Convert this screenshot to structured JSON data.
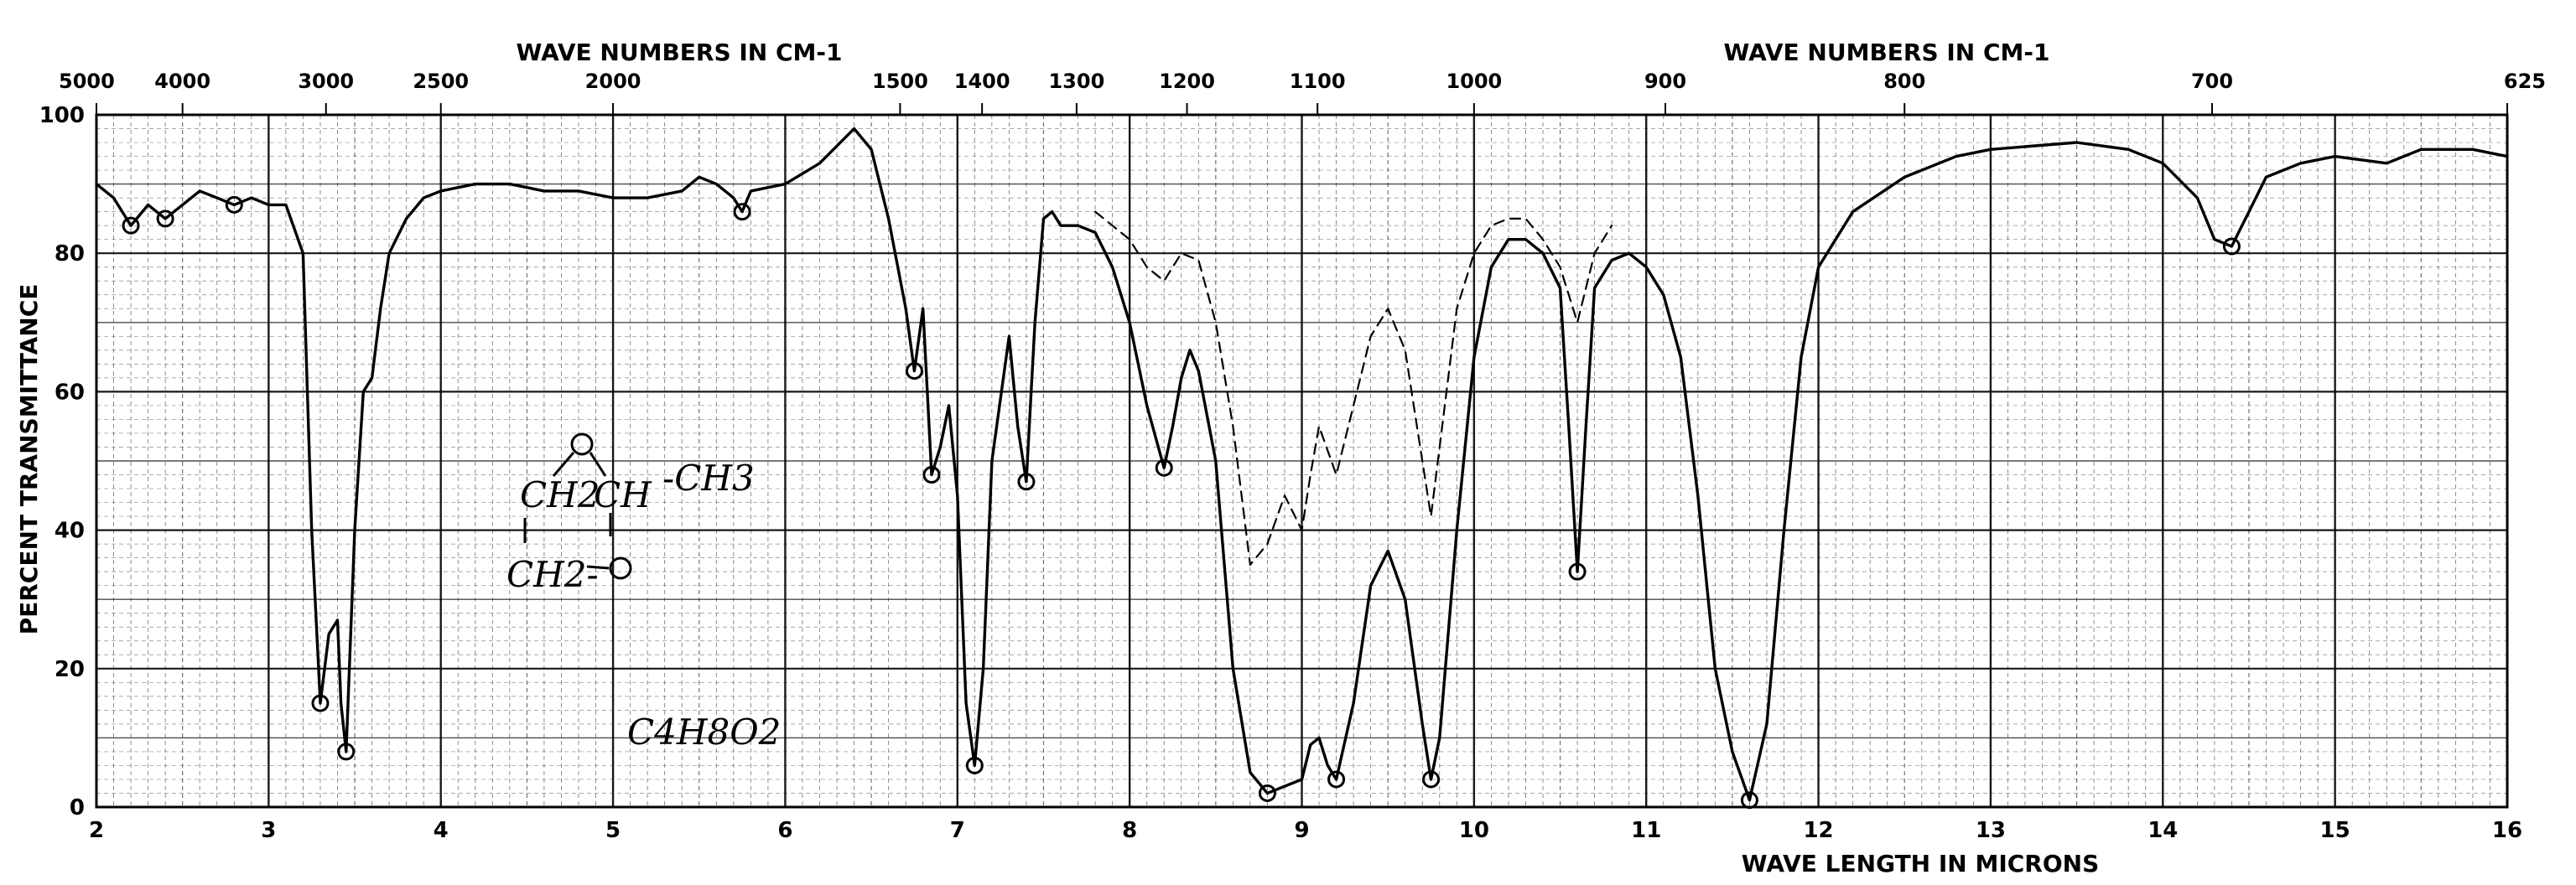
{
  "chart_data": {
    "type": "line",
    "top_axis_title_left": "WAVE NUMBERS IN CM-1",
    "top_axis_title_right": "WAVE NUMBERS IN CM-1",
    "xlabel": "WAVE LENGTH IN MICRONS",
    "ylabel": "PERCENT TRANSMITTANCE",
    "xlim": [
      2,
      16
    ],
    "ylim": [
      0,
      100
    ],
    "x_ticks": [
      2,
      3,
      4,
      5,
      6,
      7,
      8,
      9,
      10,
      11,
      12,
      13,
      14,
      15,
      16
    ],
    "y_ticks": [
      0,
      20,
      40,
      60,
      80,
      100
    ],
    "top_ticks": [
      {
        "label": "5000",
        "x": 2.0
      },
      {
        "label": "4000",
        "x": 2.5
      },
      {
        "label": "3000",
        "x": 3.333
      },
      {
        "label": "2500",
        "x": 4.0
      },
      {
        "label": "2000",
        "x": 5.0
      },
      {
        "label": "1500",
        "x": 6.667
      },
      {
        "label": "1400",
        "x": 7.143
      },
      {
        "label": "1300",
        "x": 7.692
      },
      {
        "label": "1200",
        "x": 8.333
      },
      {
        "label": "1100",
        "x": 9.091
      },
      {
        "label": "1000",
        "x": 10.0
      },
      {
        "label": "900",
        "x": 11.111
      },
      {
        "label": "800",
        "x": 12.5
      },
      {
        "label": "700",
        "x": 14.286
      },
      {
        "label": "625",
        "x": 16.0
      }
    ],
    "grid": true,
    "annotations": [
      "CH2",
      "CH",
      "-CH3",
      "CH2-",
      "C4H8O2"
    ],
    "series": [
      {
        "style": "solid",
        "points": [
          [
            2.0,
            90
          ],
          [
            2.1,
            88
          ],
          [
            2.2,
            84
          ],
          [
            2.3,
            87
          ],
          [
            2.4,
            85
          ],
          [
            2.5,
            87
          ],
          [
            2.6,
            89
          ],
          [
            2.7,
            88
          ],
          [
            2.8,
            87
          ],
          [
            2.9,
            88
          ],
          [
            3.0,
            87
          ],
          [
            3.1,
            87
          ],
          [
            3.2,
            80
          ],
          [
            3.25,
            40
          ],
          [
            3.3,
            15
          ],
          [
            3.35,
            25
          ],
          [
            3.4,
            27
          ],
          [
            3.42,
            15
          ],
          [
            3.45,
            8
          ],
          [
            3.5,
            40
          ],
          [
            3.55,
            60
          ],
          [
            3.6,
            62
          ],
          [
            3.65,
            72
          ],
          [
            3.7,
            80
          ],
          [
            3.8,
            85
          ],
          [
            3.9,
            88
          ],
          [
            4.0,
            89
          ],
          [
            4.2,
            90
          ],
          [
            4.4,
            90
          ],
          [
            4.6,
            89
          ],
          [
            4.8,
            89
          ],
          [
            5.0,
            88
          ],
          [
            5.2,
            88
          ],
          [
            5.4,
            89
          ],
          [
            5.5,
            91
          ],
          [
            5.6,
            90
          ],
          [
            5.7,
            88
          ],
          [
            5.75,
            86
          ],
          [
            5.8,
            89
          ],
          [
            6.0,
            90
          ],
          [
            6.2,
            93
          ],
          [
            6.4,
            98
          ],
          [
            6.5,
            95
          ],
          [
            6.6,
            85
          ],
          [
            6.7,
            72
          ],
          [
            6.75,
            63
          ],
          [
            6.8,
            72
          ],
          [
            6.85,
            48
          ],
          [
            6.9,
            52
          ],
          [
            6.95,
            58
          ],
          [
            7.0,
            45
          ],
          [
            7.05,
            15
          ],
          [
            7.1,
            6
          ],
          [
            7.15,
            20
          ],
          [
            7.2,
            50
          ],
          [
            7.3,
            68
          ],
          [
            7.35,
            55
          ],
          [
            7.4,
            47
          ],
          [
            7.45,
            70
          ],
          [
            7.5,
            85
          ],
          [
            7.55,
            86
          ],
          [
            7.6,
            84
          ],
          [
            7.7,
            84
          ],
          [
            7.8,
            83
          ],
          [
            7.9,
            78
          ],
          [
            8.0,
            70
          ],
          [
            8.1,
            58
          ],
          [
            8.2,
            49
          ],
          [
            8.25,
            55
          ],
          [
            8.3,
            62
          ],
          [
            8.35,
            66
          ],
          [
            8.4,
            63
          ],
          [
            8.5,
            50
          ],
          [
            8.6,
            20
          ],
          [
            8.7,
            5
          ],
          [
            8.8,
            2
          ],
          [
            8.9,
            3
          ],
          [
            9.0,
            4
          ],
          [
            9.05,
            9
          ],
          [
            9.1,
            10
          ],
          [
            9.15,
            6
          ],
          [
            9.2,
            4
          ],
          [
            9.3,
            15
          ],
          [
            9.4,
            32
          ],
          [
            9.5,
            37
          ],
          [
            9.6,
            30
          ],
          [
            9.7,
            12
          ],
          [
            9.75,
            4
          ],
          [
            9.8,
            10
          ],
          [
            9.9,
            40
          ],
          [
            10.0,
            65
          ],
          [
            10.1,
            78
          ],
          [
            10.2,
            82
          ],
          [
            10.3,
            82
          ],
          [
            10.4,
            80
          ],
          [
            10.5,
            75
          ],
          [
            10.55,
            55
          ],
          [
            10.6,
            34
          ],
          [
            10.65,
            55
          ],
          [
            10.7,
            75
          ],
          [
            10.8,
            79
          ],
          [
            10.9,
            80
          ],
          [
            11.0,
            78
          ],
          [
            11.1,
            74
          ],
          [
            11.2,
            65
          ],
          [
            11.3,
            45
          ],
          [
            11.4,
            20
          ],
          [
            11.5,
            8
          ],
          [
            11.6,
            1
          ],
          [
            11.7,
            12
          ],
          [
            11.8,
            40
          ],
          [
            11.9,
            65
          ],
          [
            12.0,
            78
          ],
          [
            12.2,
            86
          ],
          [
            12.5,
            91
          ],
          [
            12.8,
            94
          ],
          [
            13.0,
            95
          ],
          [
            13.5,
            96
          ],
          [
            13.8,
            95
          ],
          [
            14.0,
            93
          ],
          [
            14.2,
            88
          ],
          [
            14.3,
            82
          ],
          [
            14.4,
            81
          ],
          [
            14.5,
            86
          ],
          [
            14.6,
            91
          ],
          [
            14.8,
            93
          ],
          [
            15.0,
            94
          ],
          [
            15.3,
            93
          ],
          [
            15.5,
            95
          ],
          [
            15.8,
            95
          ],
          [
            16.0,
            94
          ]
        ]
      },
      {
        "style": "dashed",
        "points": [
          [
            7.8,
            86
          ],
          [
            7.9,
            84
          ],
          [
            8.0,
            82
          ],
          [
            8.1,
            78
          ],
          [
            8.2,
            76
          ],
          [
            8.3,
            80
          ],
          [
            8.4,
            79
          ],
          [
            8.5,
            70
          ],
          [
            8.6,
            55
          ],
          [
            8.7,
            35
          ],
          [
            8.8,
            38
          ],
          [
            8.9,
            45
          ],
          [
            9.0,
            40
          ],
          [
            9.05,
            48
          ],
          [
            9.1,
            55
          ],
          [
            9.2,
            48
          ],
          [
            9.3,
            58
          ],
          [
            9.4,
            68
          ],
          [
            9.5,
            72
          ],
          [
            9.6,
            66
          ],
          [
            9.7,
            50
          ],
          [
            9.75,
            42
          ],
          [
            9.8,
            52
          ],
          [
            9.9,
            72
          ],
          [
            10.0,
            80
          ],
          [
            10.1,
            84
          ],
          [
            10.2,
            85
          ],
          [
            10.3,
            85
          ],
          [
            10.4,
            82
          ],
          [
            10.5,
            78
          ],
          [
            10.6,
            70
          ],
          [
            10.7,
            80
          ],
          [
            10.8,
            84
          ]
        ]
      }
    ]
  }
}
